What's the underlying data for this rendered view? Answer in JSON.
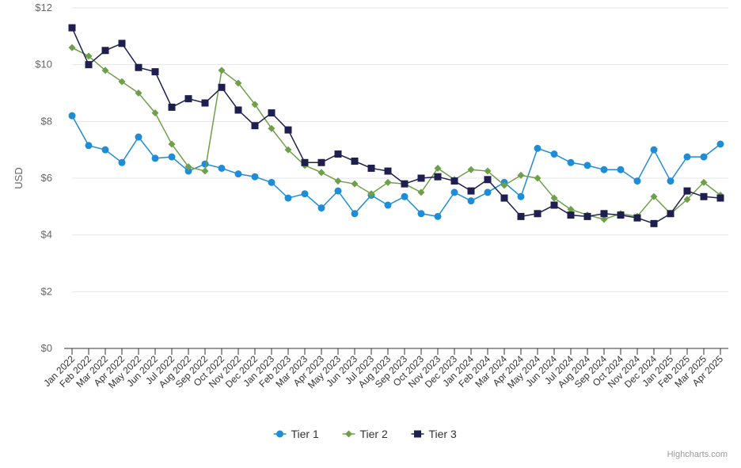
{
  "chart_data": {
    "type": "line",
    "title": "",
    "ylabel": "USD",
    "xlabel": "",
    "ylim": [
      0,
      12
    ],
    "yticks": [
      0,
      2,
      4,
      6,
      8,
      10,
      12
    ],
    "ytick_labels": [
      "$0",
      "$2",
      "$4",
      "$6",
      "$8",
      "$10",
      "$12"
    ],
    "categories": [
      "Jan 2022",
      "Feb 2022",
      "Mar 2022",
      "Apr 2022",
      "May 2022",
      "Jun 2022",
      "Jul 2022",
      "Aug 2022",
      "Sep 2022",
      "Oct 2022",
      "Nov 2022",
      "Dec 2022",
      "Jan 2023",
      "Feb 2023",
      "Mar 2023",
      "Apr 2023",
      "May 2023",
      "Jun 2023",
      "Jul 2023",
      "Aug 2023",
      "Sep 2023",
      "Oct 2023",
      "Nov 2023",
      "Dec 2023",
      "Jan 2024",
      "Feb 2024",
      "Mar 2024",
      "Apr 2024",
      "May 2024",
      "Jun 2024",
      "Jul 2024",
      "Aug 2024",
      "Sep 2024",
      "Oct 2024",
      "Nov 2024",
      "Dec 2024",
      "Jan 2025",
      "Feb 2025",
      "Mar 2025",
      "Apr 2025"
    ],
    "grid": true,
    "legend": "bottom-center",
    "series": [
      {
        "name": "Tier 1",
        "color": "#1f8dd6",
        "marker": "circle",
        "values": [
          8.2,
          7.15,
          7.0,
          6.55,
          7.45,
          6.7,
          6.75,
          6.25,
          6.5,
          6.35,
          6.15,
          6.05,
          5.85,
          5.3,
          5.45,
          4.95,
          5.55,
          4.75,
          5.4,
          5.05,
          5.35,
          4.75,
          4.65,
          5.5,
          5.2,
          5.5,
          5.85,
          5.35,
          7.05,
          6.85,
          6.55,
          6.45,
          6.3,
          6.3,
          5.9,
          7.0,
          5.9,
          6.75,
          6.75,
          7.2
        ]
      },
      {
        "name": "Tier 2",
        "color": "#6ea04a",
        "marker": "diamond",
        "values": [
          10.6,
          10.3,
          9.8,
          9.4,
          9.0,
          8.3,
          7.2,
          6.4,
          6.25,
          9.8,
          9.35,
          8.6,
          7.75,
          7.0,
          6.45,
          6.2,
          5.9,
          5.8,
          5.45,
          5.85,
          5.8,
          5.5,
          6.35,
          5.95,
          6.3,
          6.25,
          5.75,
          6.1,
          6.0,
          5.3,
          4.9,
          4.7,
          4.55,
          4.75,
          4.65,
          5.35,
          4.75,
          5.25,
          5.85,
          5.4
        ]
      },
      {
        "name": "Tier 3",
        "color": "#1f1f4f",
        "marker": "square",
        "values": [
          11.3,
          10.0,
          10.5,
          10.75,
          9.9,
          9.75,
          8.5,
          8.8,
          8.65,
          9.2,
          8.4,
          7.85,
          8.3,
          7.7,
          6.55,
          6.55,
          6.85,
          6.6,
          6.35,
          6.25,
          5.8,
          6.0,
          6.05,
          5.9,
          5.55,
          5.95,
          5.3,
          4.65,
          4.75,
          5.05,
          4.7,
          4.65,
          4.75,
          4.7,
          4.6,
          4.4,
          4.75,
          5.55,
          5.35,
          5.3
        ]
      }
    ]
  },
  "credits": "Highcharts.com"
}
